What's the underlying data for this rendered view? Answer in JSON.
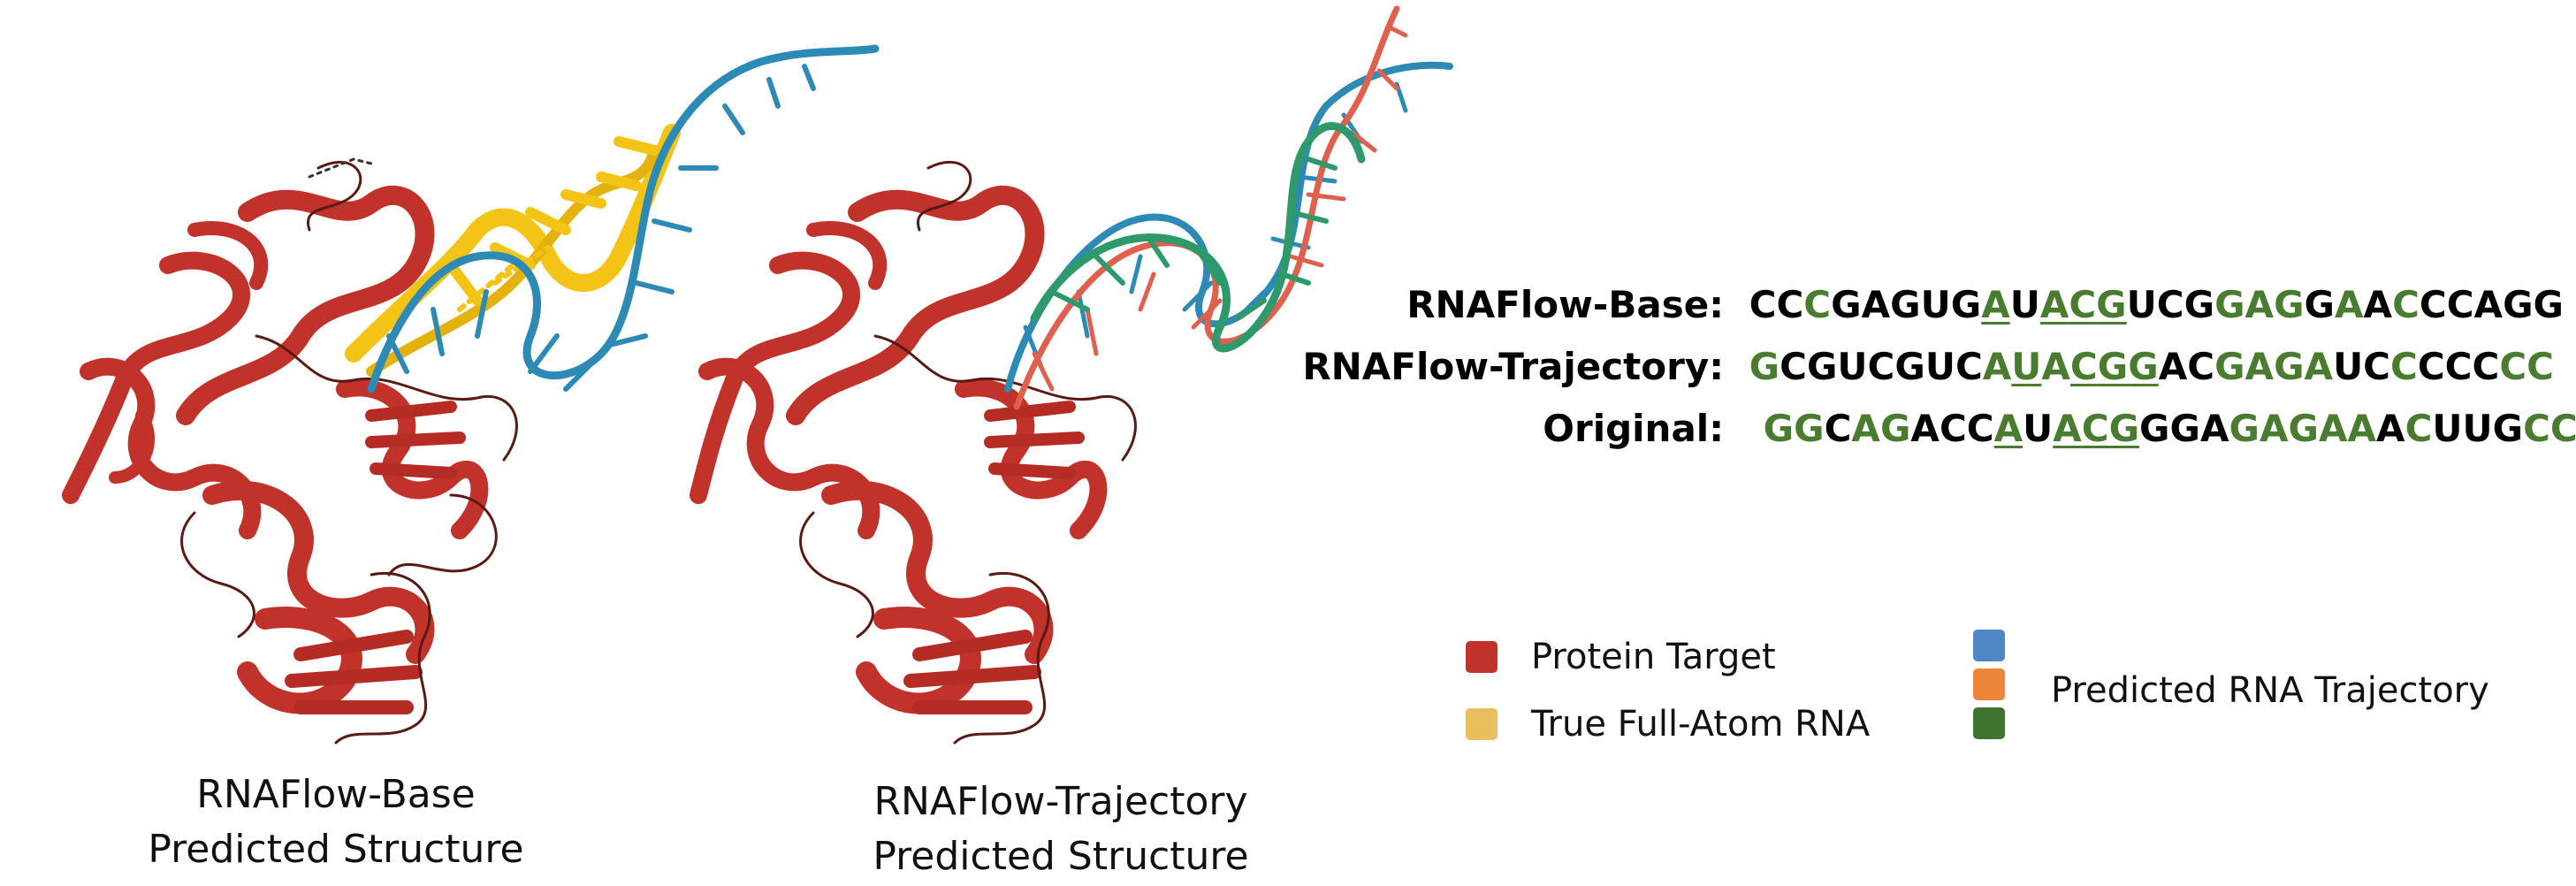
{
  "captions": {
    "base": [
      "RNAFlow-Base",
      "Predicted Structure"
    ],
    "trajectory": [
      "RNAFlow-Trajectory",
      "Predicted Structure"
    ]
  },
  "sequences": [
    {
      "label": "RNAFlow-Base:",
      "letters": [
        {
          "c": "C",
          "g": false,
          "u": false
        },
        {
          "c": "C",
          "g": false,
          "u": false
        },
        {
          "c": "C",
          "g": true,
          "u": false
        },
        {
          "c": "G",
          "g": false,
          "u": false
        },
        {
          "c": "A",
          "g": false,
          "u": false
        },
        {
          "c": "G",
          "g": false,
          "u": false
        },
        {
          "c": "U",
          "g": false,
          "u": false
        },
        {
          "c": "G",
          "g": false,
          "u": false
        },
        {
          "c": "A",
          "g": true,
          "u": true
        },
        {
          "c": "U",
          "g": false,
          "u": false
        },
        {
          "c": "A",
          "g": true,
          "u": true
        },
        {
          "c": "C",
          "g": true,
          "u": true
        },
        {
          "c": "G",
          "g": true,
          "u": true
        },
        {
          "c": "U",
          "g": false,
          "u": false
        },
        {
          "c": "C",
          "g": false,
          "u": false
        },
        {
          "c": "G",
          "g": false,
          "u": false
        },
        {
          "c": "G",
          "g": true,
          "u": false
        },
        {
          "c": "A",
          "g": true,
          "u": false
        },
        {
          "c": "G",
          "g": true,
          "u": false
        },
        {
          "c": "G",
          "g": false,
          "u": false
        },
        {
          "c": "A",
          "g": true,
          "u": false
        },
        {
          "c": "A",
          "g": false,
          "u": false
        },
        {
          "c": "C",
          "g": true,
          "u": false
        },
        {
          "c": "C",
          "g": false,
          "u": false
        },
        {
          "c": "C",
          "g": false,
          "u": false
        },
        {
          "c": "A",
          "g": false,
          "u": false
        },
        {
          "c": "G",
          "g": false,
          "u": false
        },
        {
          "c": "G",
          "g": false,
          "u": false
        }
      ]
    },
    {
      "label": "RNAFlow-Trajectory:",
      "letters": [
        {
          "c": "G",
          "g": true,
          "u": false
        },
        {
          "c": "C",
          "g": false,
          "u": false
        },
        {
          "c": "G",
          "g": false,
          "u": false
        },
        {
          "c": "U",
          "g": false,
          "u": false
        },
        {
          "c": "C",
          "g": false,
          "u": false
        },
        {
          "c": "G",
          "g": false,
          "u": false
        },
        {
          "c": "U",
          "g": false,
          "u": false
        },
        {
          "c": "C",
          "g": false,
          "u": false
        },
        {
          "c": "A",
          "g": true,
          "u": false
        },
        {
          "c": "U",
          "g": true,
          "u": true
        },
        {
          "c": "A",
          "g": true,
          "u": false
        },
        {
          "c": "C",
          "g": true,
          "u": true
        },
        {
          "c": "G",
          "g": true,
          "u": true
        },
        {
          "c": "G",
          "g": true,
          "u": true
        },
        {
          "c": "A",
          "g": false,
          "u": false
        },
        {
          "c": "C",
          "g": false,
          "u": false
        },
        {
          "c": "G",
          "g": true,
          "u": false
        },
        {
          "c": "A",
          "g": true,
          "u": false
        },
        {
          "c": "G",
          "g": true,
          "u": false
        },
        {
          "c": "A",
          "g": true,
          "u": false
        },
        {
          "c": "U",
          "g": false,
          "u": false
        },
        {
          "c": "C",
          "g": false,
          "u": false
        },
        {
          "c": "C",
          "g": true,
          "u": false
        },
        {
          "c": "C",
          "g": false,
          "u": false
        },
        {
          "c": "C",
          "g": false,
          "u": false
        },
        {
          "c": "C",
          "g": false,
          "u": false
        },
        {
          "c": "C",
          "g": true,
          "u": false
        },
        {
          "c": "C",
          "g": true,
          "u": false
        }
      ]
    },
    {
      "label": "Original:",
      "letters": [
        {
          "c": "G",
          "g": true,
          "u": false
        },
        {
          "c": "G",
          "g": true,
          "u": false
        },
        {
          "c": "C",
          "g": false,
          "u": false
        },
        {
          "c": "A",
          "g": true,
          "u": false
        },
        {
          "c": "G",
          "g": true,
          "u": false
        },
        {
          "c": "A",
          "g": false,
          "u": false
        },
        {
          "c": "C",
          "g": false,
          "u": false
        },
        {
          "c": "C",
          "g": false,
          "u": false
        },
        {
          "c": "A",
          "g": true,
          "u": true
        },
        {
          "c": "U",
          "g": false,
          "u": false
        },
        {
          "c": "A",
          "g": true,
          "u": true
        },
        {
          "c": "C",
          "g": true,
          "u": true
        },
        {
          "c": "G",
          "g": true,
          "u": true
        },
        {
          "c": "G",
          "g": false,
          "u": false
        },
        {
          "c": "G",
          "g": false,
          "u": false
        },
        {
          "c": "A",
          "g": false,
          "u": false
        },
        {
          "c": "G",
          "g": true,
          "u": false
        },
        {
          "c": "A",
          "g": true,
          "u": false
        },
        {
          "c": "G",
          "g": true,
          "u": false
        },
        {
          "c": "A",
          "g": true,
          "u": false
        },
        {
          "c": "A",
          "g": true,
          "u": false
        },
        {
          "c": "A",
          "g": false,
          "u": false
        },
        {
          "c": "C",
          "g": true,
          "u": false
        },
        {
          "c": "U",
          "g": false,
          "u": false
        },
        {
          "c": "U",
          "g": false,
          "u": false
        },
        {
          "c": "G",
          "g": false,
          "u": false
        },
        {
          "c": "C",
          "g": true,
          "u": false
        },
        {
          "c": "C",
          "g": true,
          "u": false
        }
      ]
    }
  ],
  "legend": {
    "protein_target": {
      "label": "Protein Target",
      "color": "#c0322a"
    },
    "true_rna": {
      "label": "True Full-Atom RNA",
      "color": "#e8bf5c"
    },
    "predicted_trajectory": {
      "label": "Predicted RNA Trajectory",
      "colors": [
        "#4f86c6",
        "#ee8639",
        "#3e7330"
      ]
    }
  },
  "colors": {
    "protein": "#c0322a",
    "protein_dark": "#8a1e18",
    "true_rna": "#f3c416",
    "predicted_blue": "#2d8ab4",
    "trajectory_red": "#e0604e",
    "trajectory_green": "#2e9a6c",
    "sequence_highlight": "#4a7c2f"
  }
}
